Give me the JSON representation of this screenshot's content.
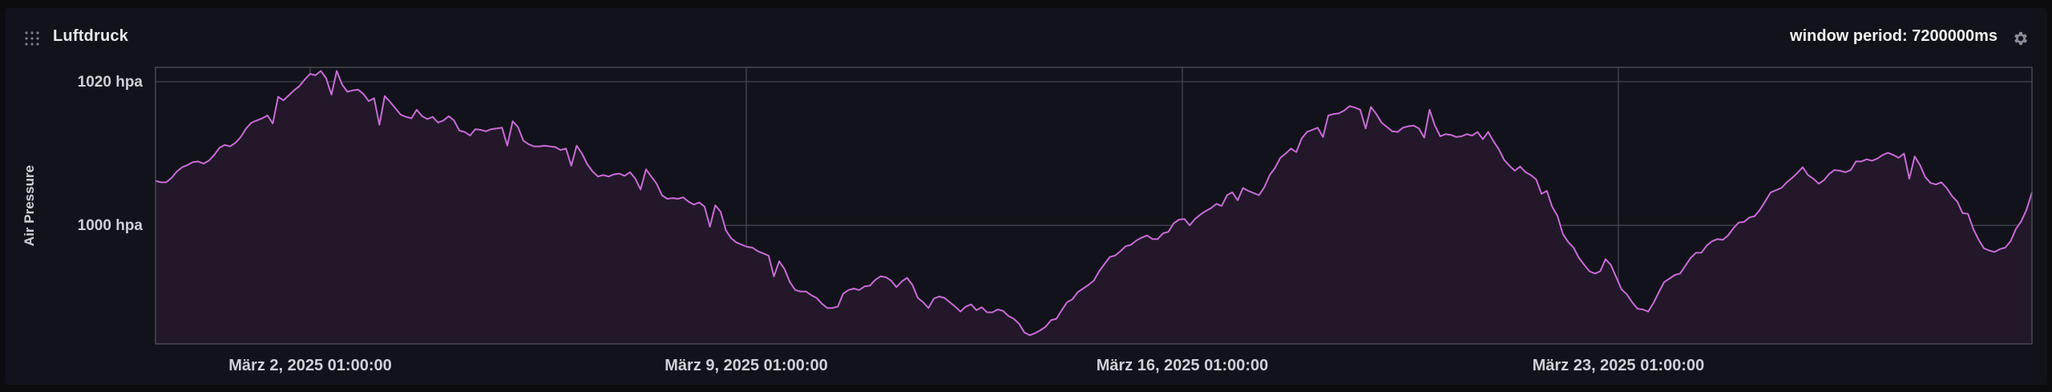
{
  "panel": {
    "title": "Luftdruck",
    "window_period": "window period: 7200000ms",
    "icons": {
      "drag": "drag-handle-icon",
      "settings": "gear-icon"
    }
  },
  "colors": {
    "line": "#c86bd6",
    "fill": "#22182a",
    "grid": "#4a4a58",
    "background": "#12121a",
    "text": "#cfcfd8"
  },
  "chart_data": {
    "type": "area",
    "ylabel": "Air Pressure",
    "y_unit": "hpa",
    "ylim": [
      983.5,
      1022
    ],
    "y_ticks": [
      {
        "value": 1000,
        "label": "1000 hpa"
      },
      {
        "value": 1020,
        "label": "1020 hpa"
      }
    ],
    "x_tick_labels": [
      "März 2, 2025 01:00:00",
      "März 9, 2025 01:00:00",
      "März 16, 2025 01:00:00",
      "März 23, 2025 01:00:00"
    ],
    "grid": true,
    "legend": "none",
    "series": [
      {
        "x_start": "2025-02-27T11:00:00",
        "x_step_hours": 2,
        "values": [
          1006.2,
          1006.0,
          1006.0,
          1006.6,
          1007.5,
          1008.1,
          1008.4,
          1008.8,
          1008.9,
          1008.6,
          1009.0,
          1009.8,
          1010.8,
          1011.2,
          1011.0,
          1011.5,
          1012.3,
          1013.5,
          1014.3,
          1014.6,
          1014.9,
          1015.3,
          1014.2,
          1017.9,
          1017.4,
          1018.1,
          1018.8,
          1019.4,
          1020.3,
          1021.1,
          1020.9,
          1021.5,
          1020.5,
          1018.2,
          1021.5,
          1019.6,
          1018.6,
          1018.8,
          1018.9,
          1018.3,
          1017.3,
          1017.7,
          1014.0,
          1018.0,
          1017.2,
          1016.3,
          1015.4,
          1015.1,
          1014.9,
          1016.1,
          1015.2,
          1014.8,
          1015.1,
          1014.3,
          1014.6,
          1015.2,
          1014.6,
          1013.2,
          1013.0,
          1012.5,
          1013.4,
          1013.3,
          1013.1,
          1013.4,
          1013.5,
          1013.6,
          1011.1,
          1014.5,
          1013.7,
          1011.8,
          1011.3,
          1011.0,
          1011.0,
          1011.1,
          1011.0,
          1010.9,
          1010.5,
          1010.7,
          1008.3,
          1011.1,
          1010.0,
          1008.5,
          1007.5,
          1006.8,
          1007.0,
          1006.8,
          1007.1,
          1007.2,
          1006.9,
          1007.4,
          1006.5,
          1005.0,
          1007.8,
          1006.8,
          1005.8,
          1004.2,
          1003.7,
          1003.8,
          1003.7,
          1003.9,
          1003.3,
          1002.9,
          1003.2,
          1002.6,
          999.8,
          1002.8,
          1001.9,
          999.3,
          998.2,
          997.6,
          997.3,
          997.0,
          996.9,
          996.4,
          996.1,
          995.8,
          992.9,
          995.0,
          993.9,
          992.1,
          991.0,
          990.8,
          990.8,
          990.3,
          989.9,
          989.1,
          988.5,
          988.5,
          988.7,
          990.5,
          991.0,
          991.2,
          991.0,
          991.5,
          991.6,
          992.4,
          992.9,
          992.8,
          992.3,
          991.4,
          992.2,
          992.7,
          991.7,
          989.9,
          989.3,
          988.5,
          989.8,
          990.1,
          989.9,
          989.3,
          988.7,
          988.0,
          988.7,
          989.0,
          988.2,
          988.6,
          987.9,
          987.9,
          988.3,
          988.1,
          987.4,
          987.0,
          986.3,
          985.1,
          984.7,
          985.0,
          985.4,
          985.9,
          986.8,
          987.0,
          988.2,
          989.3,
          989.7,
          990.7,
          991.2,
          991.7,
          992.3,
          993.6,
          994.6,
          995.6,
          995.8,
          996.4,
          997.1,
          997.3,
          997.9,
          998.3,
          998.6,
          998.1,
          998.1,
          998.9,
          999.1,
          1000.3,
          1000.8,
          1000.9,
          1000.0,
          1000.9,
          1001.5,
          1002.0,
          1002.4,
          1003.0,
          1002.7,
          1004.2,
          1004.6,
          1003.5,
          1005.2,
          1004.8,
          1004.5,
          1004.2,
          1005.3,
          1007.0,
          1008.0,
          1009.4,
          1010.0,
          1010.7,
          1010.2,
          1012.1,
          1013.0,
          1013.3,
          1013.6,
          1012.3,
          1015.3,
          1015.5,
          1015.6,
          1016.0,
          1016.6,
          1016.4,
          1016.1,
          1013.5,
          1016.5,
          1015.5,
          1014.3,
          1013.7,
          1013.1,
          1013.0,
          1013.6,
          1013.8,
          1013.9,
          1013.5,
          1012.2,
          1016.1,
          1013.9,
          1012.4,
          1012.7,
          1012.6,
          1012.3,
          1012.4,
          1012.7,
          1012.5,
          1013.0,
          1012.0,
          1013.0,
          1011.7,
          1010.6,
          1009.1,
          1008.3,
          1007.6,
          1008.2,
          1007.4,
          1007.0,
          1006.4,
          1004.4,
          1004.8,
          1002.6,
          1001.3,
          998.8,
          997.7,
          996.9,
          995.5,
          994.5,
          993.6,
          993.3,
          993.6,
          995.3,
          994.5,
          992.8,
          991.1,
          990.4,
          989.3,
          988.4,
          988.3,
          988.0,
          989.2,
          990.7,
          992.1,
          992.6,
          993.1,
          993.3,
          994.4,
          995.5,
          996.2,
          996.2,
          997.2,
          997.8,
          998.1,
          998.0,
          998.6,
          999.6,
          1000.4,
          1000.5,
          1001.1,
          1001.3,
          1002.2,
          1003.4,
          1004.6,
          1004.9,
          1005.2,
          1006.0,
          1006.6,
          1007.3,
          1008.1,
          1007.0,
          1006.5,
          1005.8,
          1006.3,
          1007.2,
          1007.7,
          1007.6,
          1007.4,
          1007.7,
          1008.9,
          1008.9,
          1009.2,
          1009.0,
          1009.3,
          1009.8,
          1010.1,
          1009.8,
          1009.4,
          1010.0,
          1006.5,
          1009.6,
          1008.4,
          1006.7,
          1005.9,
          1005.7,
          1006.0,
          1005.2,
          1004.1,
          1003.3,
          1001.7,
          1001.6,
          999.5,
          998.0,
          996.8,
          996.5,
          996.3,
          996.7,
          996.9,
          997.8,
          999.5,
          1000.6,
          1002.2,
          1004.6
        ]
      }
    ]
  }
}
